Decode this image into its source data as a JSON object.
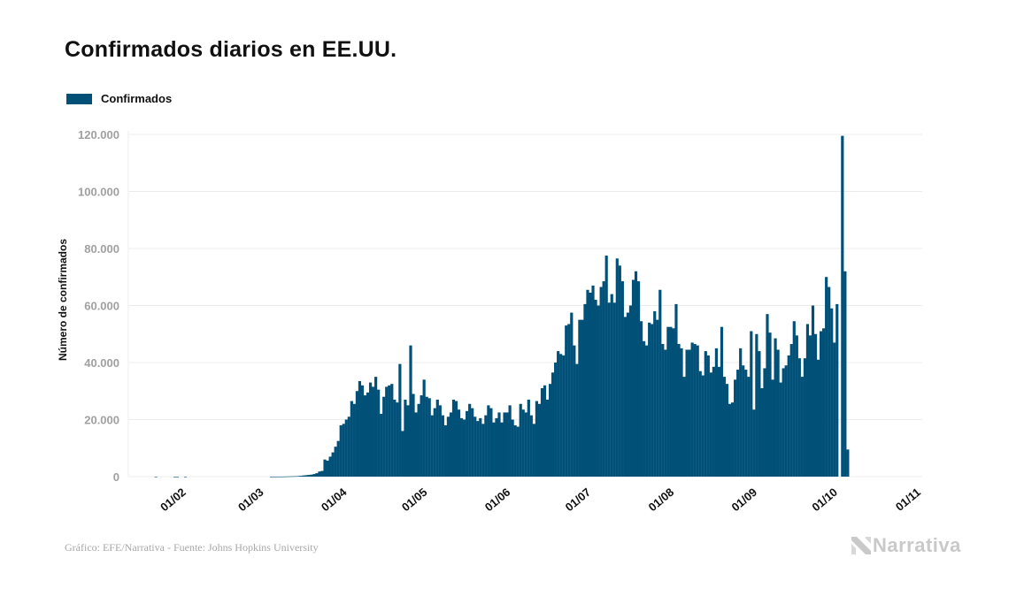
{
  "header": {
    "title": "Confirmados diarios en EE.UU."
  },
  "legend": {
    "label": "Confirmados",
    "color": "#005078"
  },
  "footer": {
    "source": "Gráfico: EFE/Narrativa - Fuente: Johns Hopkins University",
    "logo_text": "Narrativa"
  },
  "colors": {
    "bar": "#005078",
    "grid": "#ececec",
    "ytick": "#a0a0a0"
  },
  "chart_data": {
    "type": "bar",
    "title": "Confirmados diarios en EE.UU.",
    "xlabel": "",
    "ylabel": "Número de confirmados",
    "ylim": [
      0,
      120000
    ],
    "yticks": [
      0,
      20000,
      40000,
      60000,
      80000,
      100000,
      120000
    ],
    "ytick_labels": [
      "0",
      "20.000",
      "40.000",
      "60.000",
      "80.000",
      "100.000",
      "120.000"
    ],
    "xticks": [
      "01/02",
      "01/03",
      "01/04",
      "01/05",
      "01/06",
      "01/07",
      "01/08",
      "01/09",
      "01/10",
      "01/11"
    ],
    "xtick_day_index": [
      10,
      39,
      70,
      100,
      131,
      161,
      192,
      223,
      253,
      284
    ],
    "grid": true,
    "legend_position": "top-left",
    "start_date": "2020-01-22",
    "series": [
      {
        "name": "Confirmados",
        "values": [
          0,
          0,
          1,
          0,
          0,
          0,
          0,
          0,
          0,
          1,
          1,
          0,
          0,
          1,
          0,
          0,
          0,
          0,
          0,
          0,
          0,
          0,
          0,
          0,
          0,
          0,
          0,
          0,
          0,
          0,
          0,
          0,
          0,
          0,
          0,
          0,
          0,
          0,
          0,
          0,
          0,
          0,
          0,
          0,
          0,
          3,
          5,
          9,
          14,
          20,
          30,
          60,
          90,
          120,
          150,
          200,
          280,
          400,
          500,
          600,
          700,
          900,
          1200,
          1800,
          2000,
          6000,
          5600,
          7000,
          8500,
          10500,
          12500,
          18000,
          18500,
          20000,
          21000,
          26500,
          25500,
          30000,
          33500,
          32000,
          28500,
          29500,
          33000,
          31500,
          35000,
          30500,
          22000,
          28000,
          31500,
          32000,
          32500,
          27000,
          26000,
          39500,
          16000,
          27000,
          25000,
          46000,
          29000,
          22500,
          25500,
          28500,
          34000,
          28000,
          27500,
          21500,
          24000,
          27000,
          25000,
          21500,
          18000,
          21000,
          22500,
          27000,
          26500,
          23500,
          20500,
          20000,
          23000,
          25500,
          24000,
          21000,
          19500,
          20500,
          18500,
          21500,
          25000,
          24000,
          19000,
          20500,
          22500,
          19000,
          22500,
          22500,
          25000,
          20000,
          18000,
          17500,
          25500,
          23500,
          22500,
          27000,
          21500,
          18500,
          26500,
          25500,
          31000,
          32000,
          27000,
          32500,
          36500,
          40000,
          44000,
          43000,
          42500,
          53000,
          53500,
          57500,
          46000,
          39500,
          55000,
          55000,
          60500,
          65500,
          64500,
          67000,
          62000,
          60000,
          66500,
          68500,
          77500,
          61000,
          64000,
          61000,
          76500,
          74000,
          68500,
          56000,
          57500,
          60000,
          69000,
          72000,
          68500,
          54500,
          47500,
          46000,
          54000,
          53500,
          58000,
          55000,
          65500,
          46500,
          44500,
          52500,
          52500,
          52000,
          60500,
          46500,
          45000,
          35000,
          44500,
          44500,
          47000,
          46500,
          46000,
          37000,
          35500,
          44000,
          42500,
          36500,
          38500,
          45000,
          38500,
          52500,
          35000,
          32500,
          25500,
          26000,
          34000,
          37500,
          45000,
          39000,
          37500,
          35000,
          51000,
          23500,
          50000,
          44000,
          31000,
          38000,
          57000,
          50500,
          34000,
          48500,
          44500,
          33000,
          38000,
          39000,
          42500,
          46500,
          54500,
          49500,
          41500,
          35000,
          41500,
          53500,
          49500,
          60000,
          50000,
          41000,
          51000,
          52000,
          70000,
          66500,
          59000,
          47000,
          60500,
          0,
          119500,
          72000,
          9500
        ]
      }
    ]
  }
}
